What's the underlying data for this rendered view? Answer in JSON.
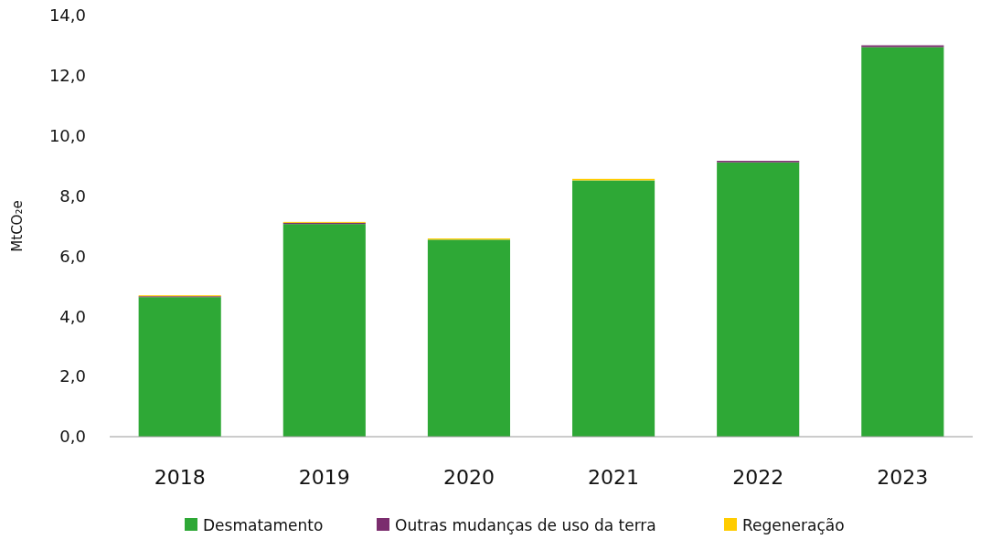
{
  "chart_data": {
    "type": "bar",
    "ylabel": "MtCO₂e",
    "categories": [
      "2018",
      "2019",
      "2020",
      "2021",
      "2022",
      "2023"
    ],
    "stacked": true,
    "series": [
      {
        "name": "Desmatamento",
        "color": "#2ea836",
        "values": [
          4.64,
          7.07,
          6.55,
          8.52,
          9.12,
          12.95
        ]
      },
      {
        "name": "Outras mudanças de uso da terra",
        "color": "#7b2d6e",
        "values": [
          0.03,
          0.04,
          null,
          null,
          0.05,
          0.06
        ]
      },
      {
        "name": "Regeneração",
        "color": "#ffcc00",
        "values": [
          0.03,
          0.03,
          0.04,
          0.05,
          0,
          0
        ]
      }
    ],
    "ylim": [
      0,
      14
    ],
    "yticks": [
      {
        "value": 0,
        "label": "0,0"
      },
      {
        "value": 2,
        "label": "2,0"
      },
      {
        "value": 4,
        "label": "4,0"
      },
      {
        "value": 6,
        "label": "6,0"
      },
      {
        "value": 8,
        "label": "8,0"
      },
      {
        "value": 10,
        "label": "10,0"
      },
      {
        "value": 12,
        "label": "12,0"
      },
      {
        "value": 14,
        "label": "14,0"
      }
    ],
    "grid": false,
    "legend": "bottom"
  }
}
